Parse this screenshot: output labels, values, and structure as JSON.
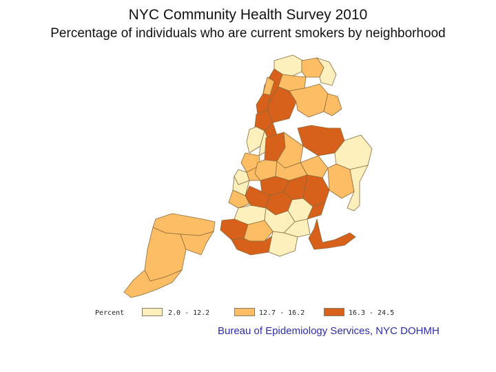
{
  "title": "NYC Community Health Survey 2010",
  "subtitle": "Percentage of individuals who are current smokers by neighborhood",
  "legend": {
    "label": "Percent",
    "classes": [
      {
        "range": "2.0 - 12.2",
        "color": "#fdf0bd"
      },
      {
        "range": "12.7 - 16.2",
        "color": "#fcbd64"
      },
      {
        "range": "16.3 - 24.5",
        "color": "#d7601a"
      }
    ]
  },
  "credit": "Bureau of Epidemiology Services, NYC DOHMH",
  "colors": {
    "border": "#8a6a3a",
    "credit_text": "#2b2bb0"
  }
}
